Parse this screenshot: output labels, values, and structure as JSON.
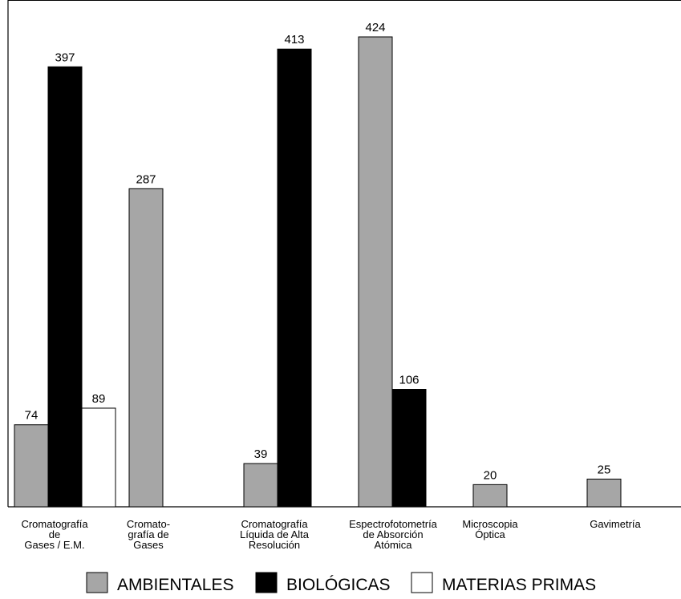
{
  "chart_data": {
    "type": "bar",
    "categories": [
      [
        "Cromatografía",
        "de",
        "Gases / E.M."
      ],
      [
        "Cromato-",
        "grafía de",
        "Gases"
      ],
      [
        "Cromatografía",
        "Líquida de Alta",
        "Resolución"
      ],
      [
        "Espectrofotometría",
        "de Absorción",
        "Atómica"
      ],
      [
        "Microscopia",
        "Óptica"
      ],
      [
        "Gavimetría"
      ]
    ],
    "series": [
      {
        "name": "AMBIENTALES",
        "color": "#a6a6a6",
        "values": [
          74,
          287,
          39,
          424,
          20,
          25
        ]
      },
      {
        "name": "BIOLÓGICAS",
        "color": "#000000",
        "values": [
          397,
          null,
          413,
          106,
          null,
          null
        ]
      },
      {
        "name": "MATERIAS PRIMAS",
        "color": "#ffffff",
        "values": [
          89,
          null,
          null,
          null,
          null,
          null
        ]
      }
    ],
    "ylim": [
      0,
      424
    ],
    "grid": false,
    "legend_position": "bottom"
  }
}
